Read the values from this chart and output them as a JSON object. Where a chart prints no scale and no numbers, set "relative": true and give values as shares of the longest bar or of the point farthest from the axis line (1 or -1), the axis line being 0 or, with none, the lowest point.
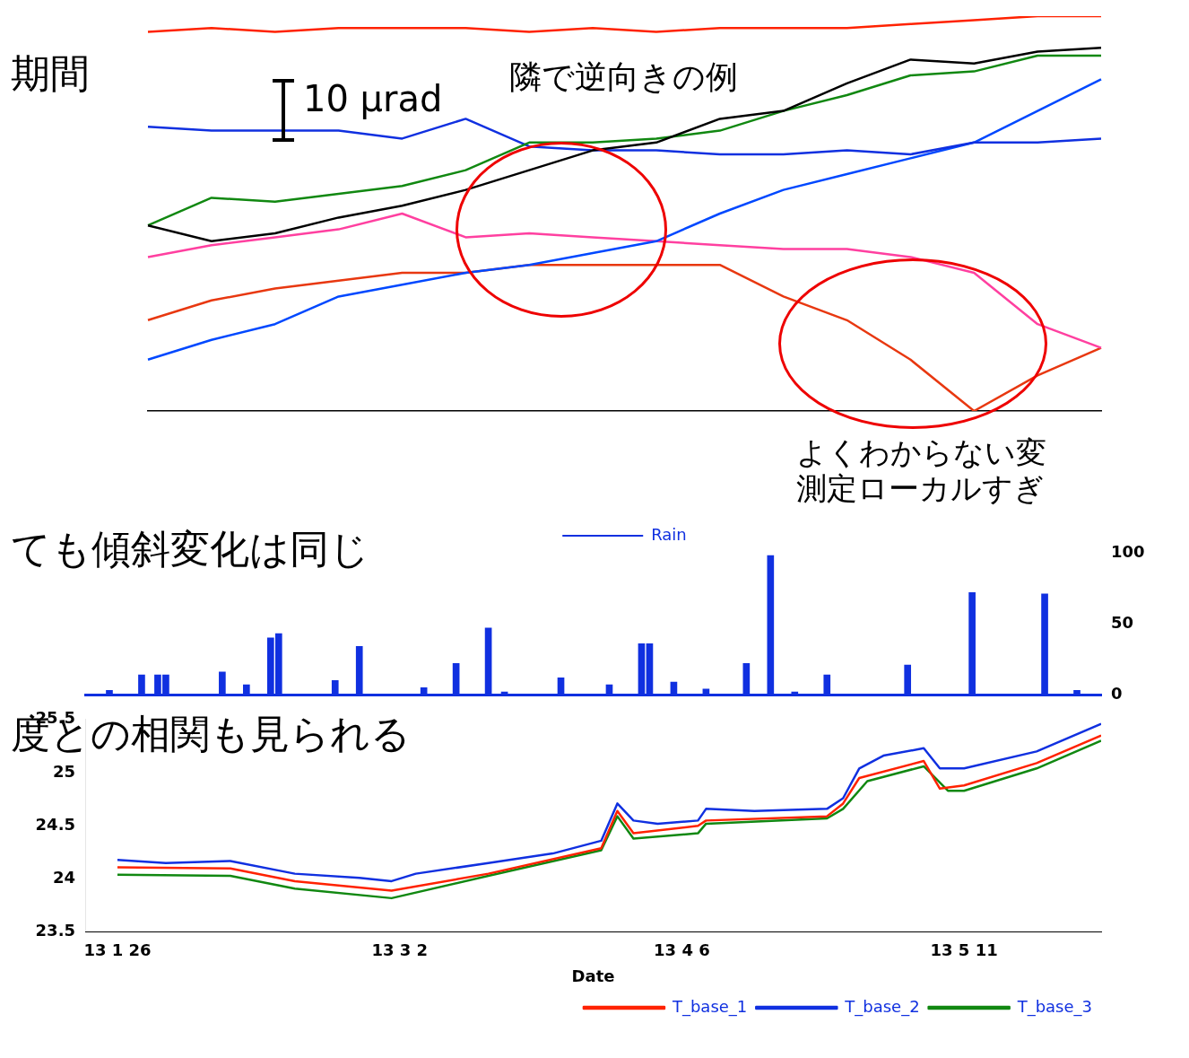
{
  "chart_data": [
    {
      "type": "line",
      "relative": true,
      "tick_labels": false,
      "grid": false,
      "legend": false,
      "categories": [
        null,
        null,
        null,
        null,
        null,
        null,
        null,
        null,
        null,
        null,
        null,
        null,
        null,
        null,
        null,
        null
      ],
      "annotations": [
        "期間",
        "10 µrad",
        "隣で逆向きの例",
        "よくわからない変",
        "測定ローカルすぎ"
      ],
      "series": [
        {
          "color": "#ff2200",
          "values": [
            0.96,
            0.97,
            0.96,
            0.97,
            0.97,
            0.97,
            0.96,
            0.97,
            0.96,
            0.97,
            0.97,
            0.97,
            0.98,
            0.99,
            1,
            1
          ]
        },
        {
          "color": "#000000",
          "values": [
            0.47,
            0.43,
            0.45,
            0.49,
            0.52,
            0.56,
            0.61,
            0.66,
            0.68,
            0.74,
            0.76,
            0.83,
            0.89,
            0.88,
            0.91,
            0.92
          ]
        },
        {
          "color": "#118811",
          "values": [
            0.47,
            0.54,
            0.53,
            0.55,
            0.57,
            0.61,
            0.68,
            0.68,
            0.69,
            0.71,
            0.76,
            0.8,
            0.85,
            0.86,
            0.9,
            0.9
          ]
        },
        {
          "color": "#1030e0",
          "values": [
            0.72,
            0.71,
            0.71,
            0.71,
            0.69,
            0.74,
            0.67,
            0.66,
            0.66,
            0.65,
            0.65,
            0.66,
            0.65,
            0.68,
            0.68,
            0.69
          ]
        },
        {
          "color": "#0048ff",
          "values": [
            0.13,
            0.18,
            0.22,
            0.29,
            0.32,
            0.35,
            0.37,
            0.4,
            0.43,
            0.5,
            0.56,
            0.6,
            0.64,
            0.68,
            0.76,
            0.84
          ]
        },
        {
          "color": "#ff40a0",
          "values": [
            0.39,
            0.42,
            0.44,
            0.46,
            0.5,
            0.44,
            0.45,
            0.44,
            0.43,
            0.42,
            0.41,
            0.41,
            0.39,
            0.35,
            0.22,
            0.16
          ]
        },
        {
          "color": "#e83810",
          "values": [
            0.23,
            0.28,
            0.31,
            0.33,
            0.35,
            0.35,
            0.37,
            0.37,
            0.37,
            0.37,
            0.29,
            0.23,
            0.13,
            0,
            0.09,
            0.16
          ]
        }
      ]
    },
    {
      "type": "bar",
      "tick_labels": "y",
      "grid": false,
      "legend": "top",
      "xlim": [
        "--01-22",
        "--05-28"
      ],
      "ylim": [
        0,
        100
      ],
      "yticks": [
        0,
        50,
        100
      ],
      "annotations": [
        "ても傾斜変化は同じ"
      ],
      "x": [
        "--01-25",
        "--01-29",
        "--01-31",
        "--02-01",
        "--02-08",
        "--02-11",
        "--02-14",
        "--02-15",
        "--02-22",
        "--02-25",
        "--03-05",
        "--03-09",
        "--03-13",
        "--03-15",
        "--03-22",
        "--03-28",
        "--04-01",
        "--04-02",
        "--04-05",
        "--04-09",
        "--04-14",
        "--04-17",
        "--04-20",
        "--04-24",
        "--05-04",
        "--05-12",
        "--05-21",
        "--05-25"
      ],
      "series": [
        {
          "name": "Rain",
          "color": "#1030e0",
          "values": [
            3,
            14,
            14,
            14,
            16,
            7,
            40,
            43,
            10,
            34,
            5,
            22,
            47,
            2,
            12,
            7,
            36,
            36,
            9,
            4,
            22,
            98,
            2,
            14,
            21,
            72,
            71,
            3
          ]
        }
      ]
    },
    {
      "type": "line",
      "grid": false,
      "legend": "bottom right",
      "xlabel": "Date",
      "xlim": [
        "--01-22",
        "--05-28"
      ],
      "ylim": [
        23.5,
        25.5
      ],
      "xticks": [
        {
          "value": "--01-26",
          "label": "13 1 26"
        },
        {
          "value": "--03-02",
          "label": "13 3 2"
        },
        {
          "value": "--04-06",
          "label": "13 4 6"
        },
        {
          "value": "--05-11",
          "label": "13 5 11"
        }
      ],
      "yticks": [
        23.5,
        24,
        24.5,
        25,
        25.5
      ],
      "annotations": [
        "度との相関も見られる"
      ],
      "series": [
        {
          "name": "T_base_1",
          "color": "#ff2200",
          "x": [
            "--01-26",
            "--02-09",
            "--02-17",
            "--03-01",
            "--03-13",
            "--03-27",
            "--03-29",
            "--03-31",
            "--04-08",
            "--04-09",
            "--04-24",
            "--04-26",
            "--04-28",
            "--05-06",
            "--05-08",
            "--05-11",
            "--05-20",
            "--05-28"
          ],
          "values": [
            24.11,
            24.1,
            23.98,
            23.89,
            24.05,
            24.29,
            24.64,
            24.43,
            24.5,
            24.55,
            24.59,
            24.71,
            24.95,
            25.11,
            24.85,
            24.88,
            25.09,
            25.35
          ]
        },
        {
          "name": "T_base_2",
          "color": "#1030e0",
          "x": [
            "--01-26",
            "--02-01",
            "--02-09",
            "--02-17",
            "--02-25",
            "--03-01",
            "--03-04",
            "--03-13",
            "--03-21",
            "--03-27",
            "--03-29",
            "--03-31",
            "--04-03",
            "--04-08",
            "--04-09",
            "--04-15",
            "--04-24",
            "--04-26",
            "--04-28",
            "--05-01",
            "--05-06",
            "--05-08",
            "--05-11",
            "--05-20",
            "--05-28"
          ],
          "values": [
            24.18,
            24.15,
            24.17,
            24.05,
            24.01,
            23.98,
            24.05,
            24.15,
            24.24,
            24.36,
            24.71,
            24.55,
            24.52,
            24.55,
            24.66,
            24.64,
            24.66,
            24.76,
            25.04,
            25.16,
            25.23,
            25.04,
            25.04,
            25.2,
            25.46
          ]
        },
        {
          "name": "T_base_3",
          "color": "#118811",
          "x": [
            "--01-26",
            "--02-09",
            "--02-17",
            "--03-01",
            "--03-13",
            "--03-27",
            "--03-29",
            "--03-31",
            "--04-08",
            "--04-09",
            "--04-24",
            "--04-26",
            "--04-29",
            "--05-06",
            "--05-09",
            "--05-11",
            "--05-20",
            "--05-28"
          ],
          "values": [
            24.04,
            24.03,
            23.91,
            23.82,
            24.03,
            24.27,
            24.59,
            24.38,
            24.43,
            24.52,
            24.57,
            24.66,
            24.92,
            25.06,
            24.83,
            24.83,
            25.04,
            25.3
          ]
        }
      ]
    }
  ]
}
